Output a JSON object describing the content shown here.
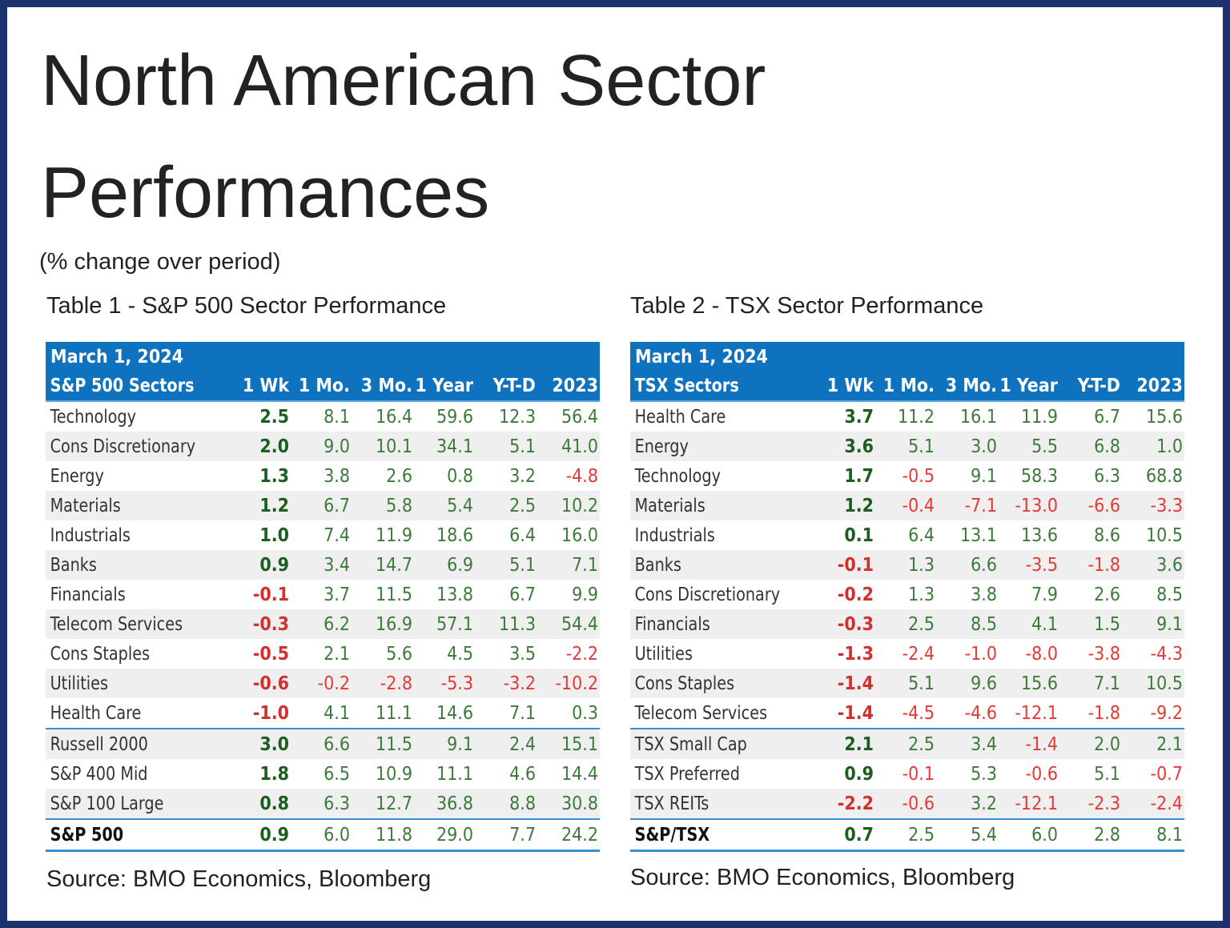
{
  "title": "North American Sector Performances",
  "subtitle": "(% change over period)",
  "colors": {
    "header": "#0f72bf",
    "positive": "#3d7a3a",
    "negative": "#e53935",
    "frame": "#1c3270"
  },
  "tables": [
    {
      "caption": "Table 1 - S&P 500 Sector Performance",
      "date": "March 1, 2024",
      "name_header": "S&P 500 Sectors",
      "columns": [
        "1 Wk",
        "1 Mo.",
        "3 Mo.",
        "1 Year",
        "Y-T-D",
        "2023"
      ],
      "rows": [
        [
          "Technology",
          "2.5",
          "8.1",
          "16.4",
          "59.6",
          "12.3",
          "56.4"
        ],
        [
          "Cons Discretionary",
          "2.0",
          "9.0",
          "10.1",
          "34.1",
          "5.1",
          "41.0"
        ],
        [
          "Energy",
          "1.3",
          "3.8",
          "2.6",
          "0.8",
          "3.2",
          "-4.8"
        ],
        [
          "Materials",
          "1.2",
          "6.7",
          "5.8",
          "5.4",
          "2.5",
          "10.2"
        ],
        [
          "Industrials",
          "1.0",
          "7.4",
          "11.9",
          "18.6",
          "6.4",
          "16.0"
        ],
        [
          "Banks",
          "0.9",
          "3.4",
          "14.7",
          "6.9",
          "5.1",
          "7.1"
        ],
        [
          "Financials",
          "-0.1",
          "3.7",
          "11.5",
          "13.8",
          "6.7",
          "9.9"
        ],
        [
          "Telecom Services",
          "-0.3",
          "6.2",
          "16.9",
          "57.1",
          "11.3",
          "54.4"
        ],
        [
          "Cons Staples",
          "-0.5",
          "2.1",
          "5.6",
          "4.5",
          "3.5",
          "-2.2"
        ],
        [
          "Utilities",
          "-0.6",
          "-0.2",
          "-2.8",
          "-5.3",
          "-3.2",
          "-10.2"
        ],
        [
          "Health Care",
          "-1.0",
          "4.1",
          "11.1",
          "14.6",
          "7.1",
          "0.3"
        ],
        [
          "Russell 2000",
          "3.0",
          "6.6",
          "11.5",
          "9.1",
          "2.4",
          "15.1"
        ],
        [
          "S&P 400 Mid",
          "1.8",
          "6.5",
          "10.9",
          "11.1",
          "4.6",
          "14.4"
        ],
        [
          "S&P 100 Large",
          "0.8",
          "6.3",
          "12.7",
          "36.8",
          "8.8",
          "30.8"
        ],
        [
          "S&P 500",
          "0.9",
          "6.0",
          "11.8",
          "29.0",
          "7.7",
          "24.2"
        ]
      ],
      "source": "Source: BMO Economics, Bloomberg"
    },
    {
      "caption": "Table 2 - TSX Sector Performance",
      "date": "March 1, 2024",
      "name_header": "TSX Sectors",
      "columns": [
        "1 Wk",
        "1 Mo.",
        "3 Mo.",
        "1 Year",
        "Y-T-D",
        "2023"
      ],
      "rows": [
        [
          "Health Care",
          "3.7",
          "11.2",
          "16.1",
          "11.9",
          "6.7",
          "15.6"
        ],
        [
          "Energy",
          "3.6",
          "5.1",
          "3.0",
          "5.5",
          "6.8",
          "1.0"
        ],
        [
          "Technology",
          "1.7",
          "-0.5",
          "9.1",
          "58.3",
          "6.3",
          "68.8"
        ],
        [
          "Materials",
          "1.2",
          "-0.4",
          "-7.1",
          "-13.0",
          "-6.6",
          "-3.3"
        ],
        [
          "Industrials",
          "0.1",
          "6.4",
          "13.1",
          "13.6",
          "8.6",
          "10.5"
        ],
        [
          "Banks",
          "-0.1",
          "1.3",
          "6.6",
          "-3.5",
          "-1.8",
          "3.6"
        ],
        [
          "Cons Discretionary",
          "-0.2",
          "1.3",
          "3.8",
          "7.9",
          "2.6",
          "8.5"
        ],
        [
          "Financials",
          "-0.3",
          "2.5",
          "8.5",
          "4.1",
          "1.5",
          "9.1"
        ],
        [
          "Utilities",
          "-1.3",
          "-2.4",
          "-1.0",
          "-8.0",
          "-3.8",
          "-4.3"
        ],
        [
          "Cons Staples",
          "-1.4",
          "5.1",
          "9.6",
          "15.6",
          "7.1",
          "10.5"
        ],
        [
          "Telecom Services",
          "-1.4",
          "-4.5",
          "-4.6",
          "-12.1",
          "-1.8",
          "-9.2"
        ],
        [
          "TSX Small Cap",
          "2.1",
          "2.5",
          "3.4",
          "-1.4",
          "2.0",
          "2.1"
        ],
        [
          "TSX Preferred",
          "0.9",
          "-0.1",
          "5.3",
          "-0.6",
          "5.1",
          "-0.7"
        ],
        [
          "TSX REITs",
          "-2.2",
          "-0.6",
          "3.2",
          "-12.1",
          "-2.3",
          "-2.4"
        ],
        [
          "S&P/TSX",
          "0.7",
          "2.5",
          "5.4",
          "6.0",
          "2.8",
          "8.1"
        ]
      ],
      "source": "Source: BMO Economics, Bloomberg"
    }
  ]
}
